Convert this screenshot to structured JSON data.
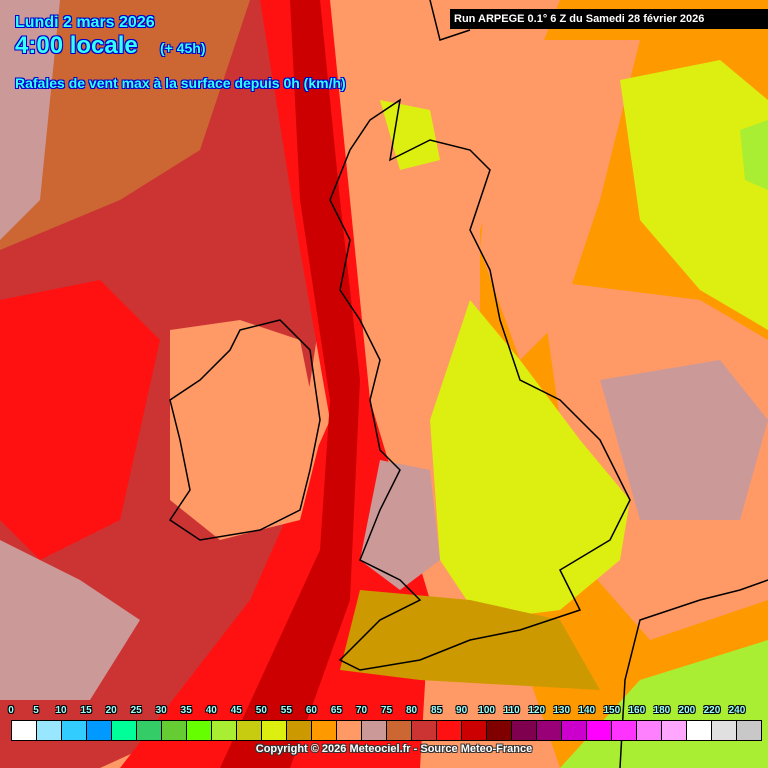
{
  "header": {
    "date": "Lundi 2 mars 2026",
    "time": "4:00 locale",
    "lead": "(+ 45h)",
    "parameter": "Rafales de vent max à la surface depuis 0h (km/h)"
  },
  "run_info": "Run ARPEGE 0.1° 6 Z du Samedi 28 février 2026",
  "legend": {
    "labels": [
      "0",
      "5",
      "10",
      "15",
      "20",
      "25",
      "30",
      "35",
      "40",
      "45",
      "50",
      "55",
      "60",
      "65",
      "70",
      "75",
      "80",
      "85",
      "90",
      "100",
      "110",
      "120",
      "130",
      "140",
      "150",
      "160",
      "180",
      "200",
      "220",
      "240"
    ],
    "colors": [
      "#ffffff",
      "#99e6ff",
      "#33ccff",
      "#0099ff",
      "#00ff99",
      "#33cc66",
      "#66cc33",
      "#66ff00",
      "#aaee33",
      "#c8cc11",
      "#ddee11",
      "#cc9900",
      "#ff9900",
      "#ff9966",
      "#cc9999",
      "#cc6633",
      "#cc3333",
      "#ff1111",
      "#cc0000",
      "#800000",
      "#800050",
      "#990077",
      "#cc00cc",
      "#ff00ff",
      "#ff33ff",
      "#ff80ff",
      "#ffa6ff",
      "#ffffff",
      "#e0e0e0",
      "#c8c8c8"
    ]
  },
  "copyright": "Copyright © 2026 Meteociel.fr - Source Meteo-France"
}
